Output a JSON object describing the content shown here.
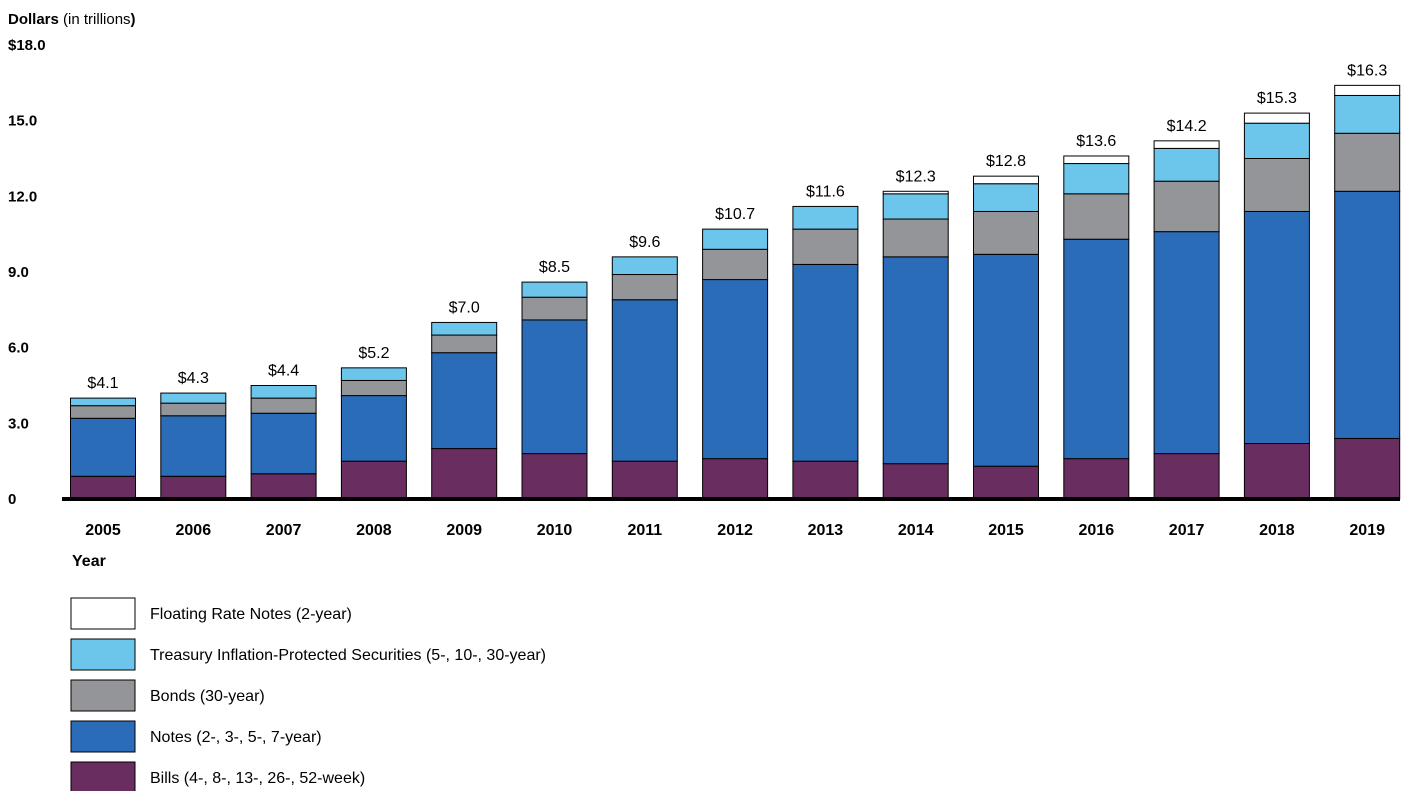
{
  "chart_data": {
    "type": "bar",
    "stacked": true,
    "y_axis_title_bold": "Dollars",
    "y_axis_title_unit": " (in trillions",
    "y_axis_title_close": ")",
    "xlabel": "Year",
    "ylim": [
      0,
      18
    ],
    "ytick_labels": [
      "0",
      "3.0",
      "6.0",
      "9.0",
      "12.0",
      "15.0",
      "$18.0"
    ],
    "ytick_values": [
      0,
      3,
      6,
      9,
      12,
      15,
      18
    ],
    "grid": false,
    "legend_position": "bottom-left",
    "categories": [
      "2005",
      "2006",
      "2007",
      "2008",
      "2009",
      "2010",
      "2011",
      "2012",
      "2013",
      "2014",
      "2015",
      "2016",
      "2017",
      "2018",
      "2019"
    ],
    "totals": [
      "$4.1",
      "$4.3",
      "$4.4",
      "$5.2",
      "$7.0",
      "$8.5",
      "$9.6",
      "$10.7",
      "$11.6",
      "$12.3",
      "$12.8",
      "$13.6",
      "$14.2",
      "$15.3",
      "$16.3"
    ],
    "series": [
      {
        "name": "Bills (4-, 8-, 13-, 26-, 52-week)",
        "color": "#6a2d5f",
        "values": [
          0.9,
          0.9,
          1.0,
          1.5,
          2.0,
          1.8,
          1.5,
          1.6,
          1.5,
          1.4,
          1.3,
          1.6,
          1.8,
          2.2,
          2.4
        ]
      },
      {
        "name": "Notes (2-, 3-, 5-, 7-year)",
        "color": "#2b6cb8",
        "values": [
          2.3,
          2.4,
          2.4,
          2.6,
          3.8,
          5.3,
          6.4,
          7.1,
          7.8,
          8.2,
          8.4,
          8.7,
          8.8,
          9.2,
          9.8
        ]
      },
      {
        "name": "Bonds (30-year)",
        "color": "#939598",
        "values": [
          0.5,
          0.5,
          0.6,
          0.6,
          0.7,
          0.9,
          1.0,
          1.2,
          1.4,
          1.5,
          1.7,
          1.8,
          2.0,
          2.1,
          2.3
        ]
      },
      {
        "name": "Treasury Inflation-Protected Securities (5-, 10-, 30-year)",
        "color": "#6cc5ea",
        "values": [
          0.3,
          0.4,
          0.5,
          0.5,
          0.5,
          0.6,
          0.7,
          0.8,
          0.9,
          1.0,
          1.1,
          1.2,
          1.3,
          1.4,
          1.5
        ]
      },
      {
        "name": "Floating Rate Notes (2-year)",
        "color": "#ffffff",
        "values": [
          0,
          0,
          0,
          0,
          0,
          0,
          0,
          0,
          0,
          0.1,
          0.3,
          0.3,
          0.3,
          0.4,
          0.4
        ]
      }
    ]
  }
}
